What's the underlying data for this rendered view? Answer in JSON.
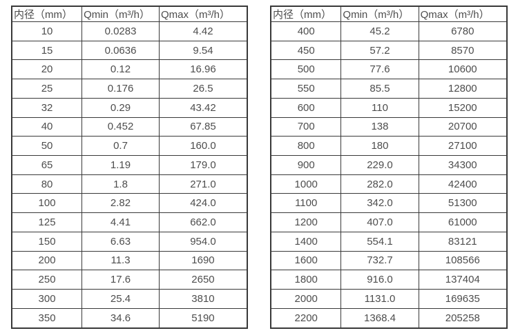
{
  "colors": {
    "background": "#ffffff",
    "border": "#383838",
    "text": "#4d4d4d"
  },
  "tables": [
    {
      "name": "flow-spec-table-small-diameters",
      "headers": [
        "内径（mm）",
        "Qmin（m³/h）",
        "Qmax（m³/h）"
      ],
      "rows": [
        [
          "10",
          "0.0283",
          "4.42"
        ],
        [
          "15",
          "0.0636",
          "9.54"
        ],
        [
          "20",
          "0.12",
          "16.96"
        ],
        [
          "25",
          "0.176",
          "26.5"
        ],
        [
          "32",
          "0.29",
          "43.42"
        ],
        [
          "40",
          "0.452",
          "67.85"
        ],
        [
          "50",
          "0.7",
          "160.0"
        ],
        [
          "65",
          "1.19",
          "179.0"
        ],
        [
          "80",
          "1.8",
          "271.0"
        ],
        [
          "100",
          "2.82",
          "424.0"
        ],
        [
          "125",
          "4.41",
          "662.0"
        ],
        [
          "150",
          "6.63",
          "954.0"
        ],
        [
          "200",
          "11.3",
          "1690"
        ],
        [
          "250",
          "17.6",
          "2650"
        ],
        [
          "300",
          "25.4",
          "3810"
        ],
        [
          "350",
          "34.6",
          "5190"
        ]
      ]
    },
    {
      "name": "flow-spec-table-large-diameters",
      "headers": [
        "内径（mm）",
        "Qmin（m³/h）",
        "Qmax（m³/h）"
      ],
      "rows": [
        [
          "400",
          "45.2",
          "6780"
        ],
        [
          "450",
          "57.2",
          "8570"
        ],
        [
          "500",
          "77.6",
          "10600"
        ],
        [
          "550",
          "85.5",
          "12800"
        ],
        [
          "600",
          "110",
          "15200"
        ],
        [
          "700",
          "138",
          "20700"
        ],
        [
          "800",
          "180",
          "27100"
        ],
        [
          "900",
          "229.0",
          "34300"
        ],
        [
          "1000",
          "282.0",
          "42400"
        ],
        [
          "1100",
          "342.0",
          "51300"
        ],
        [
          "1200",
          "407.0",
          "61000"
        ],
        [
          "1400",
          "554.1",
          "83121"
        ],
        [
          "1600",
          "732.7",
          "108566"
        ],
        [
          "1800",
          "916.0",
          "137404"
        ],
        [
          "2000",
          "1131.0",
          "169635"
        ],
        [
          "2200",
          "1368.4",
          "205258"
        ]
      ]
    }
  ]
}
